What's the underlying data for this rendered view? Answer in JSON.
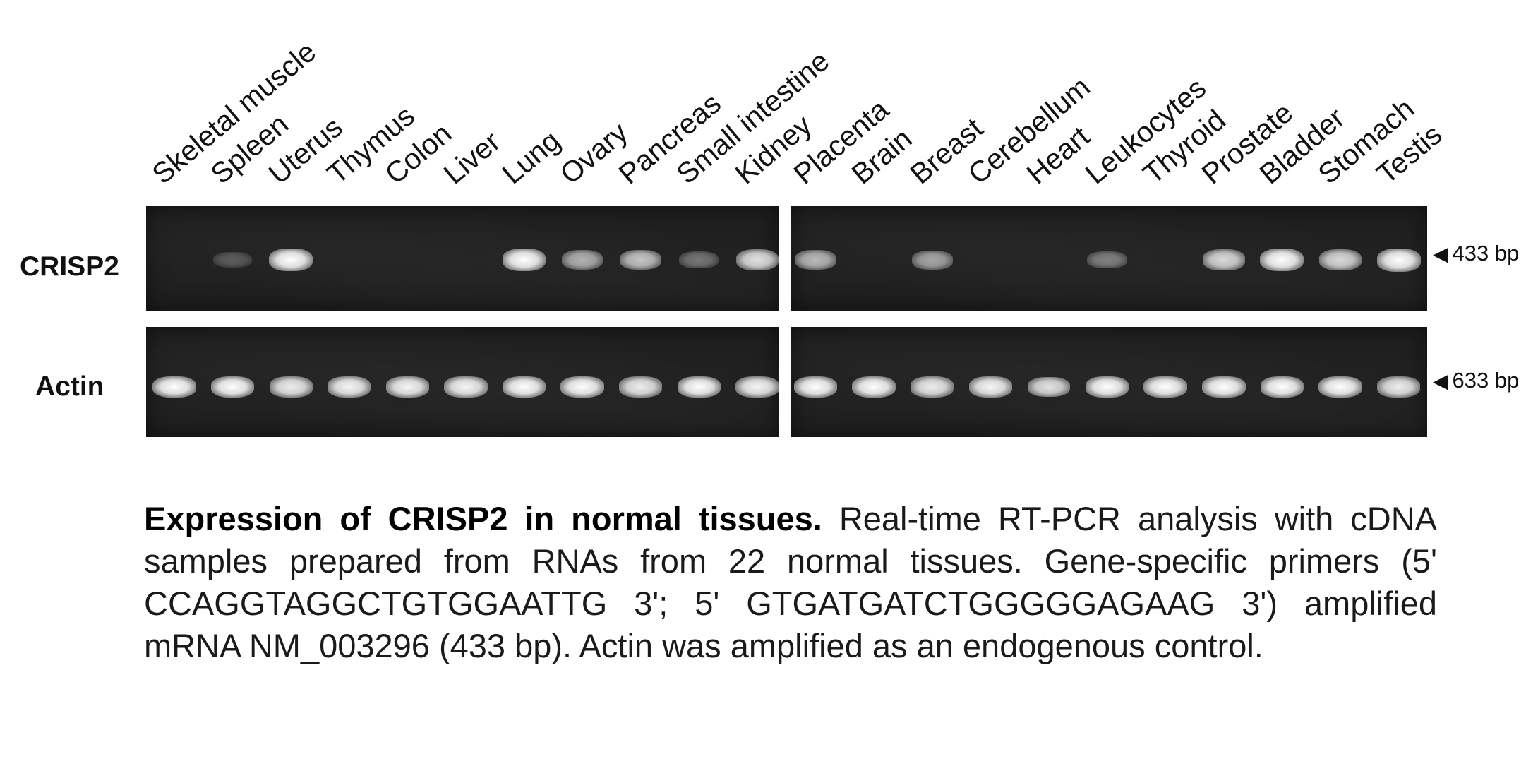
{
  "lanes": [
    "Skeletal muscle",
    "Spleen",
    "Uterus",
    "Thymus",
    "Colon",
    "Liver",
    "Lung",
    "Ovary",
    "Pancreas",
    "Small intestine",
    "Kidney",
    "Placenta",
    "Brain",
    "Breast",
    "Cerebellum",
    "Heart",
    "Leukocytes",
    "Thyroid",
    "Prostate",
    "Bladder",
    "Stomach",
    "Testis"
  ],
  "rows": [
    {
      "label": "CRISP2",
      "marker": "433 bp",
      "intensity": [
        0,
        0.12,
        0.95,
        0,
        0,
        0,
        0.95,
        0.55,
        0.65,
        0.25,
        0.8,
        0.6,
        0,
        0.5,
        0,
        0,
        0.3,
        0,
        0.75,
        0.98,
        0.75,
        1.0
      ]
    },
    {
      "label": "Actin",
      "marker": "633 bp",
      "intensity": [
        0.95,
        0.95,
        0.85,
        0.9,
        0.9,
        0.9,
        0.95,
        0.95,
        0.85,
        0.95,
        0.9,
        0.95,
        0.95,
        0.85,
        0.9,
        0.8,
        0.95,
        0.95,
        0.95,
        0.95,
        0.95,
        0.85
      ]
    }
  ],
  "caption": {
    "title": "Expression of CRISP2 in normal tissues.",
    "text": " Real-time RT-PCR analysis with cDNA samples prepared from RNAs from 22 normal tissues. Gene-specific primers (5' CCAGGTAGGCTGTGGAATTG 3'; 5' GTGATGATCTGGGGGAGAAG 3') amplified mRNA NM_003296 (433 bp). Actin was amplified as an endogenous control."
  }
}
